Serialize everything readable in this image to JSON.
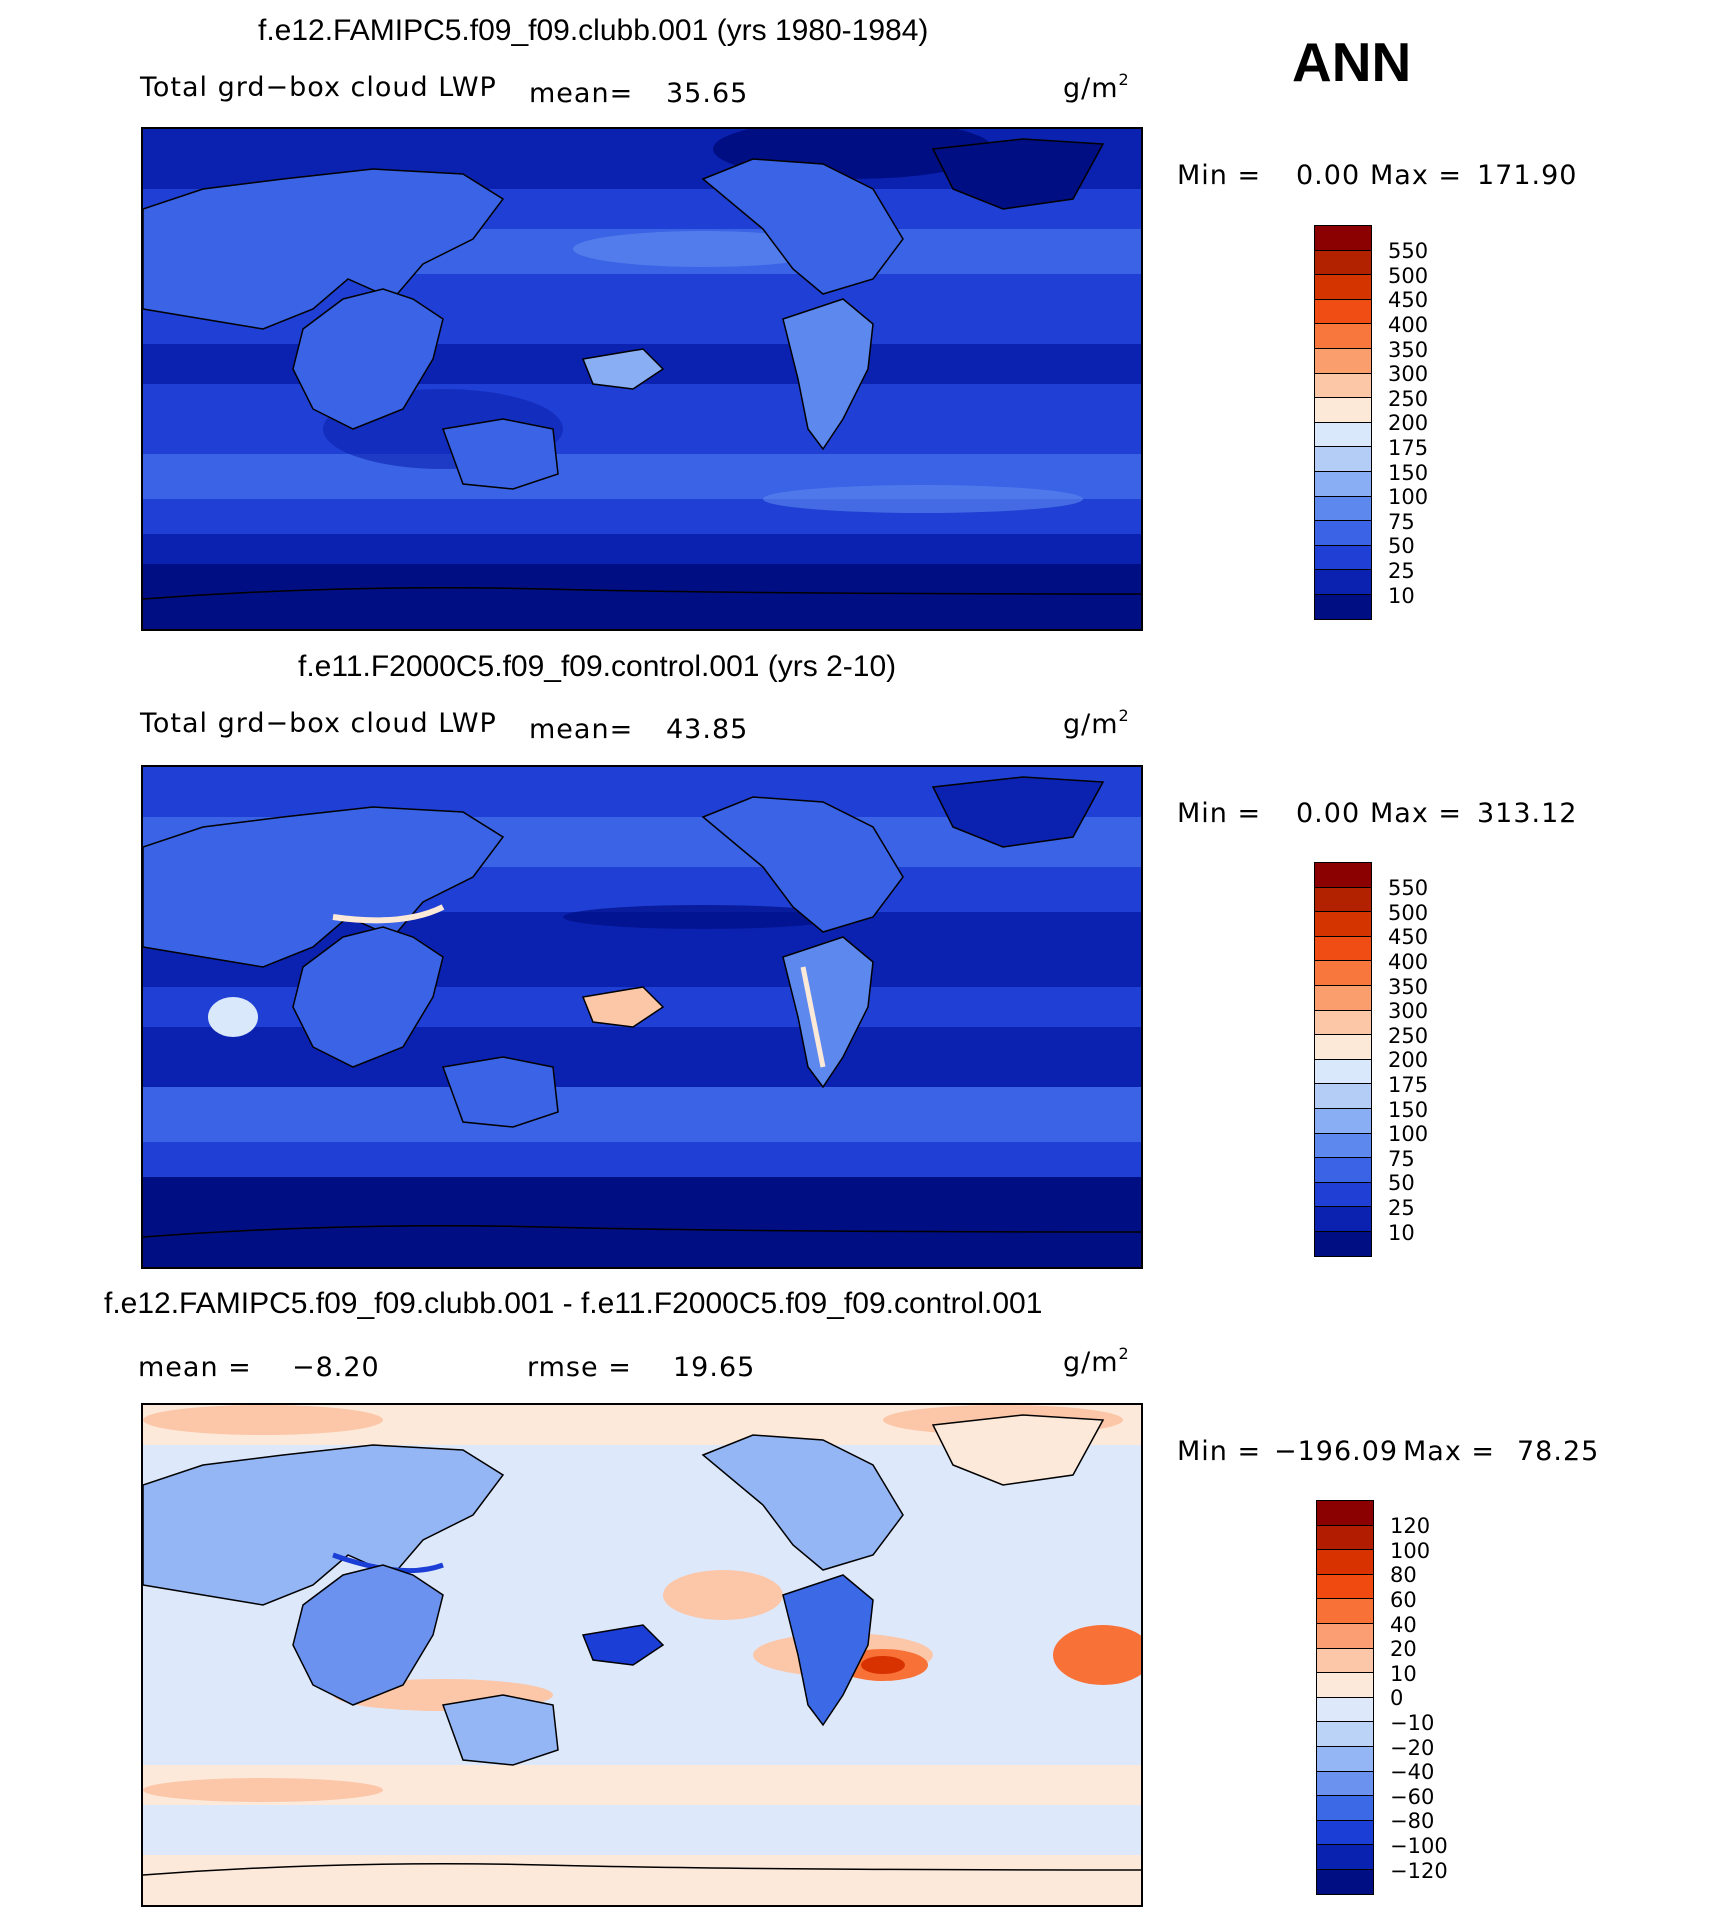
{
  "season": "ANN",
  "panels": [
    {
      "title": "f.e12.FAMIPC5.f09_f09.clubb.001 (yrs 1980-1984)",
      "field": "Total grd−box cloud LWP",
      "stat1_label": "mean=",
      "stat1_value": "35.65",
      "units_base": "g/m",
      "units_exp": "2",
      "min_label": "Min =",
      "min_value": "0.00",
      "max_label": "Max =",
      "max_value": "171.90",
      "colorbar": {
        "labels": [
          "550",
          "500",
          "450",
          "400",
          "350",
          "300",
          "250",
          "200",
          "175",
          "150",
          "100",
          "75",
          "50",
          "25",
          "10"
        ],
        "colors": [
          "#8b0000",
          "#b22200",
          "#d43500",
          "#f04d14",
          "#f7773c",
          "#fb9e6e",
          "#fcc7a6",
          "#fde9d7",
          "#d9e8fa",
          "#b3cdf7",
          "#8aaef3",
          "#5d88ee",
          "#3a63e6",
          "#1f3fd5",
          "#0b22b1",
          "#000e84"
        ]
      }
    },
    {
      "title": "f.e11.F2000C5.f09_f09.control.001 (yrs 2-10)",
      "field": "Total grd−box cloud LWP",
      "stat1_label": "mean=",
      "stat1_value": "43.85",
      "units_base": "g/m",
      "units_exp": "2",
      "min_label": "Min =",
      "min_value": "0.00",
      "max_label": "Max =",
      "max_value": "313.12",
      "colorbar": {
        "labels": [
          "550",
          "500",
          "450",
          "400",
          "350",
          "300",
          "250",
          "200",
          "175",
          "150",
          "100",
          "75",
          "50",
          "25",
          "10"
        ],
        "colors": [
          "#8b0000",
          "#b22200",
          "#d43500",
          "#f04d14",
          "#f7773c",
          "#fb9e6e",
          "#fcc7a6",
          "#fde9d7",
          "#d9e8fa",
          "#b3cdf7",
          "#8aaef3",
          "#5d88ee",
          "#3a63e6",
          "#1f3fd5",
          "#0b22b1",
          "#000e84"
        ]
      }
    },
    {
      "title": "f.e12.FAMIPC5.f09_f09.clubb.001 - f.e11.F2000C5.f09_f09.control.001",
      "stat1_label": "mean =",
      "stat1_value": "−8.20",
      "stat2_label": "rmse =",
      "stat2_value": "19.65",
      "units_base": "g/m",
      "units_exp": "2",
      "min_label": "Min =",
      "min_value": "−196.09",
      "max_label": "Max =",
      "max_value": "78.25",
      "colorbar": {
        "labels": [
          "120",
          "100",
          "80",
          "60",
          "40",
          "20",
          "10",
          "0",
          "−10",
          "−20",
          "−40",
          "−60",
          "−80",
          "−100",
          "−120"
        ],
        "colors": [
          "#8b0000",
          "#b21c00",
          "#d83200",
          "#f04a10",
          "#f87238",
          "#fb9e74",
          "#fcc6a8",
          "#fde9da",
          "#dde9fb",
          "#bcd3f8",
          "#94b6f4",
          "#6a92ee",
          "#3c69e6",
          "#1b3ed6",
          "#0a22b0",
          "#000e84"
        ]
      }
    }
  ]
}
